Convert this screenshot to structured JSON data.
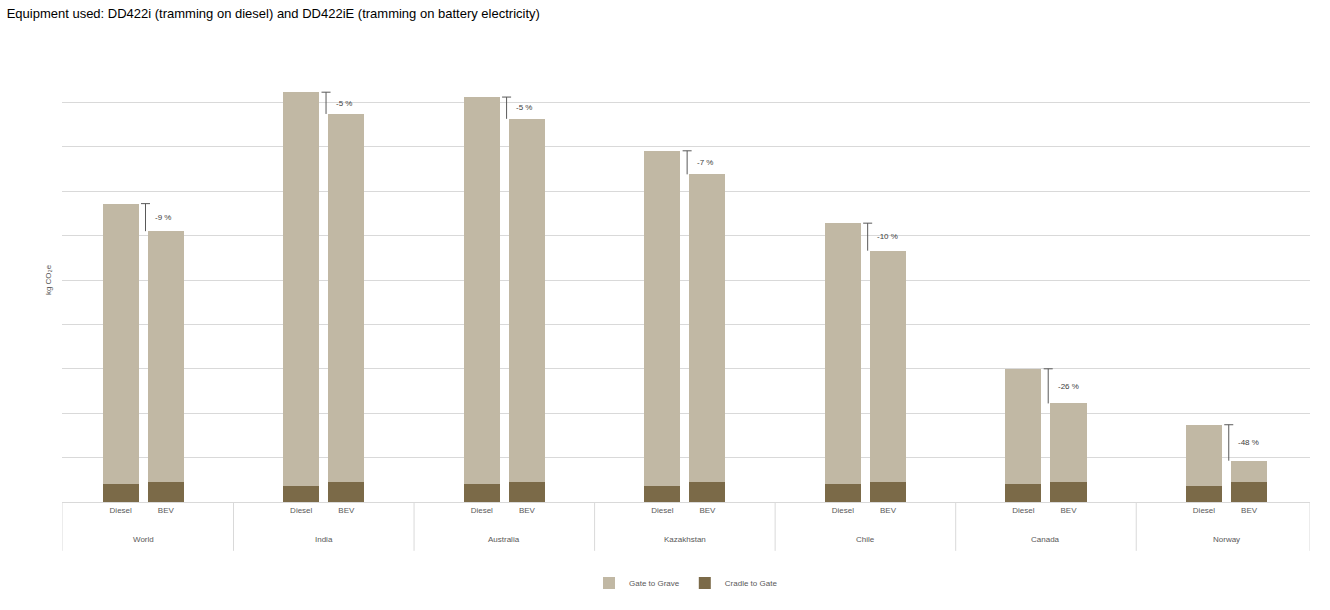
{
  "chart_data": {
    "type": "bar",
    "stacked": true,
    "title": "Equipment used: DD422i (tramming on diesel) and DD422iE (tramming on battery electricity)",
    "y_label": "kg CO₂e",
    "categories": [
      "World",
      "India",
      "Australia",
      "Kazakhstan",
      "Chile",
      "Canada",
      "Norway"
    ],
    "subcategories": [
      "Diesel",
      "BEV"
    ],
    "series": [
      {
        "name": "Cradle to Gate",
        "color": "#7b6a48",
        "values": [
          [
            0.4,
            0.44
          ],
          [
            0.37,
            0.44
          ],
          [
            0.4,
            0.44
          ],
          [
            0.37,
            0.44
          ],
          [
            0.4,
            0.44
          ],
          [
            0.4,
            0.44
          ],
          [
            0.37,
            0.44
          ]
        ]
      },
      {
        "name": "Gate to Grave",
        "color": "#c1b8a4",
        "values": [
          [
            6.32,
            5.66
          ],
          [
            8.86,
            8.3
          ],
          [
            8.72,
            8.19
          ],
          [
            7.54,
            6.94
          ],
          [
            5.88,
            5.22
          ],
          [
            2.6,
            1.78
          ],
          [
            1.37,
            0.49
          ]
        ]
      }
    ],
    "annotations": [
      "-9 %",
      "-5 %",
      "-5 %",
      "-7 %",
      "-10 %",
      "-26 %",
      "-48 %"
    ],
    "ylim": [
      0,
      10
    ],
    "yticks": [
      0,
      1,
      2,
      3,
      4,
      5,
      6,
      7,
      8,
      9,
      10
    ],
    "grid": true,
    "tick_labels": "x",
    "legend": "bottom"
  }
}
